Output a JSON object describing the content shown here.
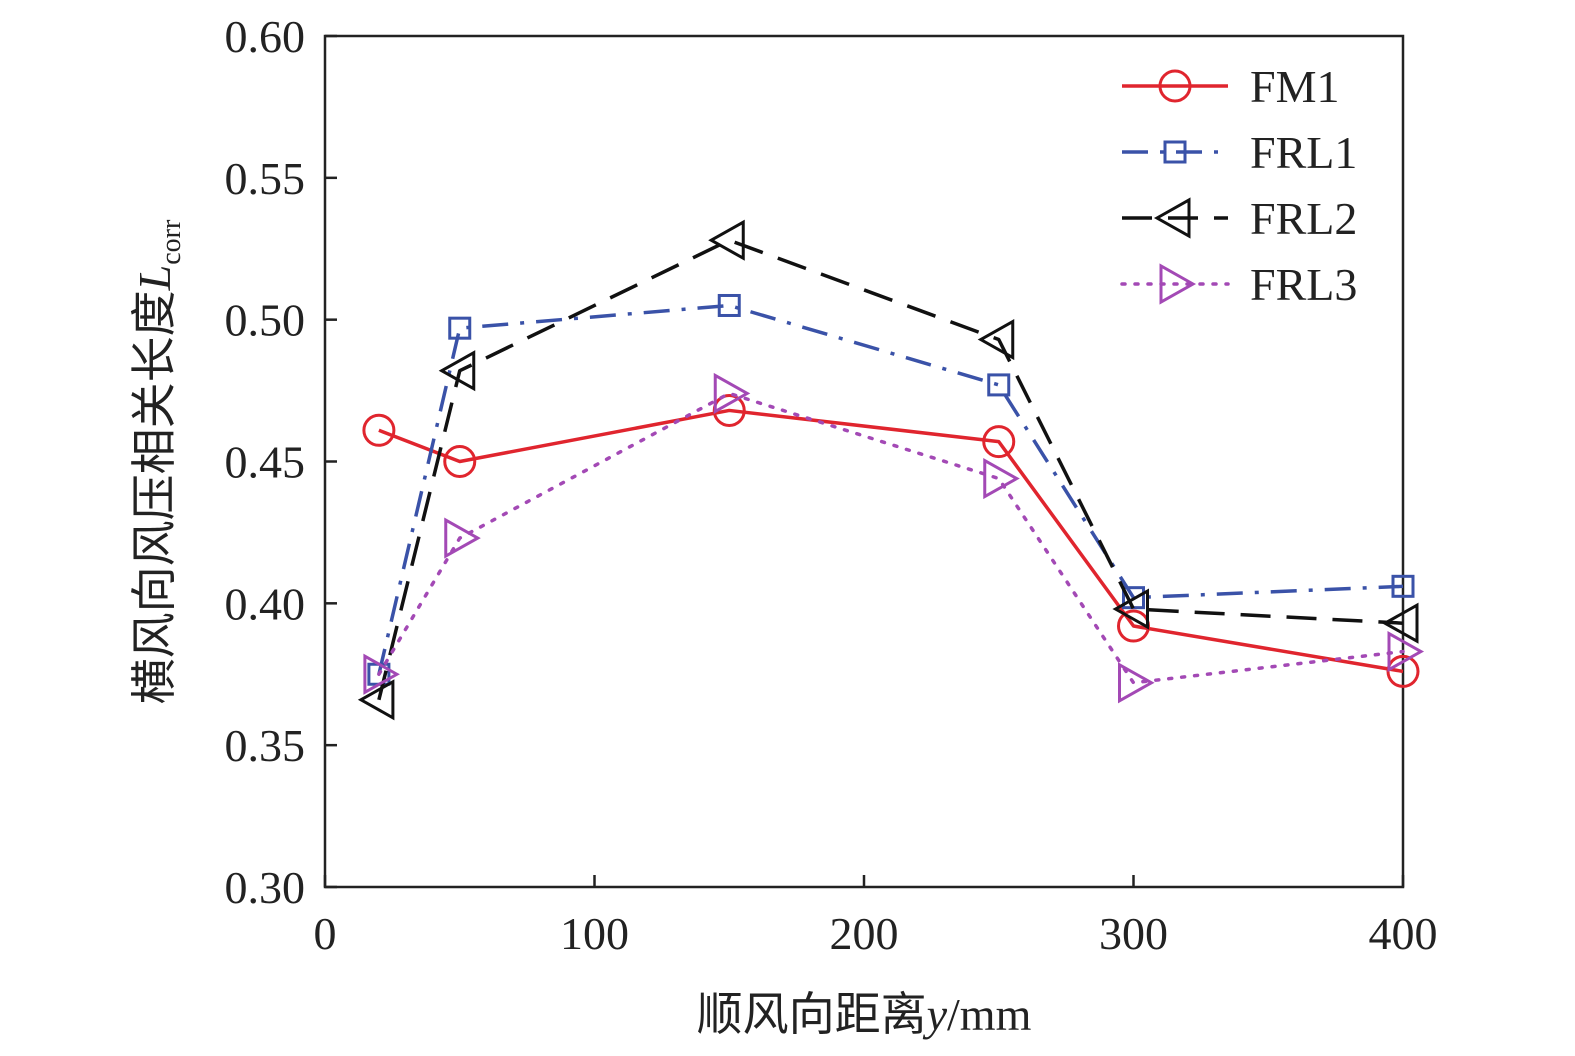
{
  "chart_data": {
    "type": "line",
    "xlabel": {
      "main": "顺风向距离",
      "var": "y",
      "unit": "/mm"
    },
    "ylabel": {
      "main": "横风向风压相关长度",
      "var": "L",
      "sub": "corr"
    },
    "xlim": [
      0,
      400
    ],
    "ylim": [
      0.3,
      0.6
    ],
    "xticks": [
      "0",
      "100",
      "200",
      "300",
      "400"
    ],
    "yticks": [
      "0.30",
      "0.35",
      "0.40",
      "0.45",
      "0.50",
      "0.55",
      "0.60"
    ],
    "grid": false,
    "legend_position": "top-right",
    "series": [
      {
        "name": "FM1",
        "color": "#e0252e",
        "dash": "solid",
        "marker": "circle",
        "x": [
          20,
          50,
          150,
          250,
          300,
          400
        ],
        "y": [
          0.461,
          0.45,
          0.468,
          0.457,
          0.392,
          0.376
        ]
      },
      {
        "name": "FRL1",
        "color": "#3a52a8",
        "dash": "dashdot",
        "marker": "square",
        "x": [
          20,
          50,
          150,
          250,
          300,
          400
        ],
        "y": [
          0.375,
          0.497,
          0.505,
          0.477,
          0.402,
          0.406
        ]
      },
      {
        "name": "FRL2",
        "color": "#111111",
        "dash": "dashed",
        "marker": "triangle-left",
        "x": [
          20,
          50,
          150,
          250,
          300,
          400
        ],
        "y": [
          0.366,
          0.482,
          0.528,
          0.493,
          0.398,
          0.393
        ]
      },
      {
        "name": "FRL3",
        "color": "#a349b5",
        "dash": "dotted",
        "marker": "triangle-right",
        "x": [
          20,
          50,
          150,
          250,
          300,
          400
        ],
        "y": [
          0.375,
          0.423,
          0.474,
          0.444,
          0.372,
          0.383
        ]
      }
    ]
  }
}
